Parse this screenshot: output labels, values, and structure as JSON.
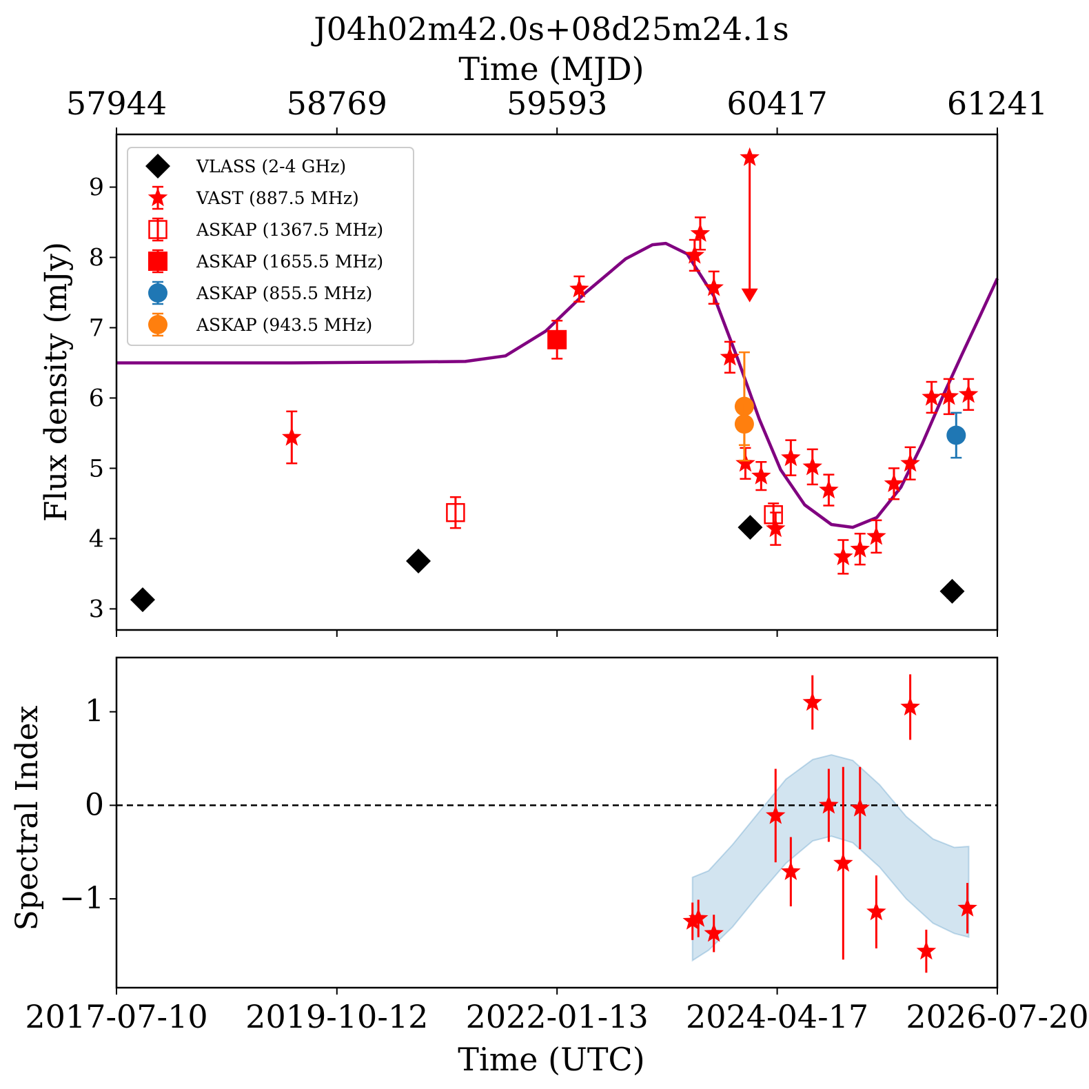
{
  "chart_data": {
    "type": "scatter",
    "title": "J04h02m42.0s+08d25m24.1s",
    "top_axis": {
      "label": "Time (MJD)",
      "ticks": [
        57944,
        58769,
        59593,
        60417,
        61241
      ]
    },
    "bottom_axis": {
      "label": "Time (UTC)",
      "ticks": [
        "2017-07-10",
        "2019-10-12",
        "2022-01-13",
        "2024-04-17",
        "2026-07-20"
      ],
      "range_mjd": [
        57944,
        61241
      ]
    },
    "panels": [
      {
        "id": "flux",
        "ylabel": "Flux density (mJy)",
        "ylim": [
          2.7,
          9.75
        ],
        "yticks": [
          3,
          4,
          5,
          6,
          7,
          8,
          9
        ],
        "legend": {
          "position": "upper-left"
        },
        "series": [
          {
            "name": "VLASS (2-4 GHz)",
            "marker": "diamond",
            "color": "#000000",
            "points": [
              [
                58042,
                3.13,
                0.06
              ],
              [
                59074,
                3.68,
                0.08
              ],
              [
                60316,
                4.16,
                0.09
              ],
              [
                61072,
                3.25,
                0.09
              ]
            ]
          },
          {
            "name": "VAST (887.5 MHz)",
            "marker": "star",
            "color": "#ff0000",
            "points": [
              [
                58600,
                5.44,
                0.37
              ],
              [
                59676,
                7.55,
                0.18
              ],
              [
                60108,
                8.03,
                0.22
              ],
              [
                60129,
                8.34,
                0.23
              ],
              [
                60180,
                7.57,
                0.23
              ],
              [
                60240,
                6.58,
                0.22
              ],
              [
                60298,
                5.07,
                0.22
              ],
              [
                60357,
                4.89,
                0.2
              ],
              [
                60411,
                4.14,
                0.23
              ],
              [
                60468,
                5.15,
                0.25
              ],
              [
                60549,
                5.02,
                0.25
              ],
              [
                60610,
                4.69,
                0.22
              ],
              [
                60664,
                3.74,
                0.24
              ],
              [
                60727,
                3.85,
                0.22
              ],
              [
                60788,
                4.03,
                0.23
              ],
              [
                60854,
                4.78,
                0.22
              ],
              [
                60915,
                5.07,
                0.23
              ],
              [
                60995,
                6.01,
                0.22
              ],
              [
                61060,
                6.02,
                0.25
              ],
              [
                61133,
                6.05,
                0.22
              ]
            ]
          },
          {
            "name": "ASKAP (1367.5 MHz)",
            "marker": "square-open",
            "color": "#ff0000",
            "points": [
              [
                59213,
                4.37,
                0.22
              ],
              [
                60403,
                4.34,
                0.16
              ]
            ]
          },
          {
            "name": "ASKAP (1655.5 MHz)",
            "marker": "square",
            "color": "#ff0000",
            "points": [
              [
                59593,
                6.83,
                0.27
              ]
            ]
          },
          {
            "name": "ASKAP (855.5 MHz)",
            "marker": "circle",
            "color": "#1f77b4",
            "points": [
              [
                61087,
                5.47,
                0.32
              ]
            ]
          },
          {
            "name": "ASKAP (943.5 MHz)",
            "marker": "circle",
            "color": "#ff7f0e",
            "points": [
              [
                60294,
                5.88,
                0.77
              ],
              [
                60294,
                5.63,
                0.3
              ]
            ]
          }
        ],
        "upper_limit": {
          "series": "VAST (887.5 MHz)",
          "x": 60314,
          "y": 9.42,
          "arrow_to": 7.4
        },
        "model_curve": {
          "color": "#800080",
          "points": [
            [
              57944,
              6.5
            ],
            [
              58600,
              6.5
            ],
            [
              59000,
              6.51
            ],
            [
              59250,
              6.52
            ],
            [
              59400,
              6.6
            ],
            [
              59550,
              6.95
            ],
            [
              59700,
              7.5
            ],
            [
              59850,
              7.98
            ],
            [
              59950,
              8.18
            ],
            [
              60000,
              8.2
            ],
            [
              60080,
              8.05
            ],
            [
              60180,
              7.45
            ],
            [
              60270,
              6.55
            ],
            [
              60350,
              5.7
            ],
            [
              60430,
              4.98
            ],
            [
              60520,
              4.48
            ],
            [
              60620,
              4.2
            ],
            [
              60700,
              4.16
            ],
            [
              60790,
              4.3
            ],
            [
              60880,
              4.73
            ],
            [
              60960,
              5.35
            ],
            [
              61040,
              6.05
            ],
            [
              61110,
              6.63
            ],
            [
              61180,
              7.2
            ],
            [
              61241,
              7.7
            ]
          ]
        }
      },
      {
        "id": "spectral_index",
        "ylabel": "Spectral Index",
        "ylim": [
          -1.95,
          1.58
        ],
        "yticks": [
          -1,
          0,
          1
        ],
        "ytick_labels": [
          "−1",
          "0",
          "1"
        ],
        "reference_line": 0,
        "series": [
          {
            "name": "VAST (887.5 MHz)",
            "marker": "star",
            "color": "#ff0000",
            "points": [
              [
                60100,
                -1.24,
                0.2
              ],
              [
                60122,
                -1.21,
                0.2
              ],
              [
                60180,
                -1.37,
                0.2
              ],
              [
                60411,
                -0.11,
                0.5
              ],
              [
                60468,
                -0.71,
                0.37
              ],
              [
                60549,
                1.1,
                0.29
              ],
              [
                60610,
                0.0,
                0.39
              ],
              [
                60664,
                -0.62,
                1.03
              ],
              [
                60727,
                -0.03,
                0.44
              ],
              [
                60788,
                -1.14,
                0.39
              ],
              [
                60915,
                1.05,
                0.35
              ],
              [
                60975,
                -1.56,
                0.23
              ],
              [
                61129,
                -1.1,
                0.27
              ]
            ]
          }
        ],
        "band": {
          "color": "#1f77b4",
          "upper": [
            [
              60100,
              -0.77
            ],
            [
              60160,
              -0.7
            ],
            [
              60250,
              -0.42
            ],
            [
              60350,
              -0.07
            ],
            [
              60450,
              0.28
            ],
            [
              60550,
              0.49
            ],
            [
              60620,
              0.54
            ],
            [
              60700,
              0.48
            ],
            [
              60800,
              0.22
            ],
            [
              60900,
              -0.12
            ],
            [
              61000,
              -0.36
            ],
            [
              61080,
              -0.45
            ],
            [
              61134,
              -0.44
            ]
          ],
          "lower": [
            [
              60100,
              -1.66
            ],
            [
              60160,
              -1.55
            ],
            [
              60250,
              -1.3
            ],
            [
              60350,
              -0.95
            ],
            [
              60450,
              -0.62
            ],
            [
              60550,
              -0.38
            ],
            [
              60620,
              -0.33
            ],
            [
              60700,
              -0.4
            ],
            [
              60800,
              -0.66
            ],
            [
              60900,
              -1.0
            ],
            [
              61000,
              -1.26
            ],
            [
              61080,
              -1.37
            ],
            [
              61134,
              -1.41
            ]
          ]
        }
      }
    ]
  }
}
